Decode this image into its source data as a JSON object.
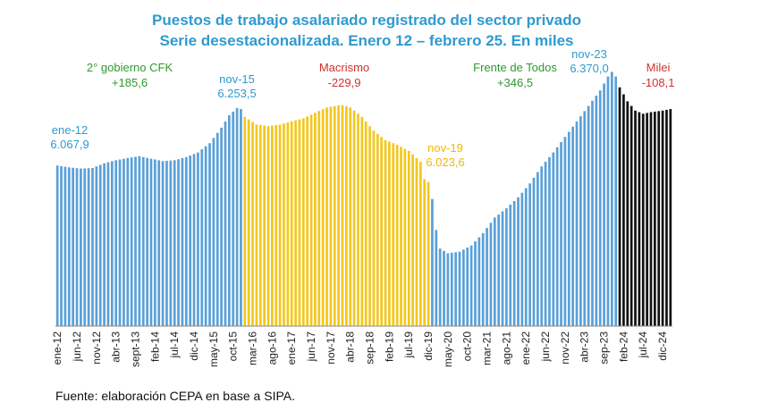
{
  "chart_data": {
    "type": "bar",
    "title": "Puestos de trabajo asalariado registrado del sector privado",
    "subtitle": "Serie desestacionalizada. Enero 12 – febrero 25. En miles",
    "source": "Fuente: elaboración CEPA en base a SIPA.",
    "xlabel": "",
    "ylabel": "",
    "ylim": [
      5550,
      6400
    ],
    "grid": false,
    "tick_labels": [
      "ene-12",
      "jun-12",
      "nov-12",
      "abr-13",
      "sept-13",
      "feb-14",
      "jul-14",
      "dic-14",
      "may-15",
      "oct-15",
      "mar-16",
      "ago-16",
      "ene-17",
      "jun-17",
      "nov-17",
      "abr-18",
      "sep-18",
      "feb-19",
      "jul-19",
      "dic-19",
      "may-20",
      "oct-20",
      "mar-21",
      "ago-21",
      "ene-22",
      "jun-22",
      "nov-22",
      "abr-23",
      "sep-23",
      "feb-24",
      "jul-24",
      "dic-24"
    ],
    "periods": [
      {
        "name": "2° gobierno CFK",
        "change": "+185,6",
        "color": "#5aa0d8",
        "label_color": "#2e9a2e",
        "start": 0,
        "end": 47
      },
      {
        "name": "Macrismo",
        "change": "-229,9",
        "color": "#f2c81e",
        "label_color": "#d0312d",
        "start": 48,
        "end": 95
      },
      {
        "name": "Frente de Todos",
        "change": "+346,5",
        "color": "#5aa0d8",
        "label_color": "#2e9a2e",
        "start": 96,
        "end": 143
      },
      {
        "name": "Milei",
        "change": "-108,1",
        "color": "#111111",
        "label_color": "#d0312d",
        "start": 144,
        "end": 157
      }
    ],
    "annotations": [
      {
        "label": "ene-12",
        "value": "6.067,9",
        "index": 0,
        "color": "#2e9ad0"
      },
      {
        "label": "nov-15",
        "value": "6.253,5",
        "index": 46,
        "color": "#2e9ad0"
      },
      {
        "label": "nov-19",
        "value": "6.023,6",
        "index": 94,
        "color": "#f2b800"
      },
      {
        "label": "nov-23",
        "value": "6.370,0",
        "index": 142,
        "color": "#2e9ad0"
      }
    ],
    "anchors": [
      [
        0,
        6067.9
      ],
      [
        3,
        6062
      ],
      [
        6,
        6058
      ],
      [
        9,
        6060
      ],
      [
        12,
        6075
      ],
      [
        15,
        6085
      ],
      [
        18,
        6092
      ],
      [
        21,
        6098
      ],
      [
        24,
        6090
      ],
      [
        27,
        6082
      ],
      [
        30,
        6085
      ],
      [
        33,
        6095
      ],
      [
        36,
        6110
      ],
      [
        39,
        6140
      ],
      [
        42,
        6190
      ],
      [
        44,
        6230
      ],
      [
        46,
        6253.5
      ],
      [
        47,
        6250
      ],
      [
        48,
        6225
      ],
      [
        51,
        6200
      ],
      [
        54,
        6195
      ],
      [
        57,
        6200
      ],
      [
        60,
        6210
      ],
      [
        63,
        6220
      ],
      [
        66,
        6238
      ],
      [
        69,
        6255
      ],
      [
        72,
        6262
      ],
      [
        73,
        6262
      ],
      [
        75,
        6255
      ],
      [
        78,
        6225
      ],
      [
        81,
        6180
      ],
      [
        84,
        6150
      ],
      [
        87,
        6135
      ],
      [
        90,
        6115
      ],
      [
        93,
        6080
      ],
      [
        94,
        6023.6
      ],
      [
        95,
        6015
      ],
      [
        96,
        5960
      ],
      [
        97,
        5860
      ],
      [
        98,
        5800
      ],
      [
        100,
        5785
      ],
      [
        103,
        5790
      ],
      [
        106,
        5810
      ],
      [
        109,
        5850
      ],
      [
        112,
        5900
      ],
      [
        115,
        5930
      ],
      [
        118,
        5965
      ],
      [
        121,
        6010
      ],
      [
        124,
        6065
      ],
      [
        127,
        6110
      ],
      [
        130,
        6160
      ],
      [
        133,
        6210
      ],
      [
        136,
        6260
      ],
      [
        139,
        6310
      ],
      [
        141,
        6355
      ],
      [
        142,
        6370
      ],
      [
        143,
        6355
      ],
      [
        144,
        6320
      ],
      [
        146,
        6275
      ],
      [
        148,
        6245
      ],
      [
        150,
        6235
      ],
      [
        152,
        6240
      ],
      [
        155,
        6245
      ],
      [
        157,
        6250
      ]
    ]
  }
}
